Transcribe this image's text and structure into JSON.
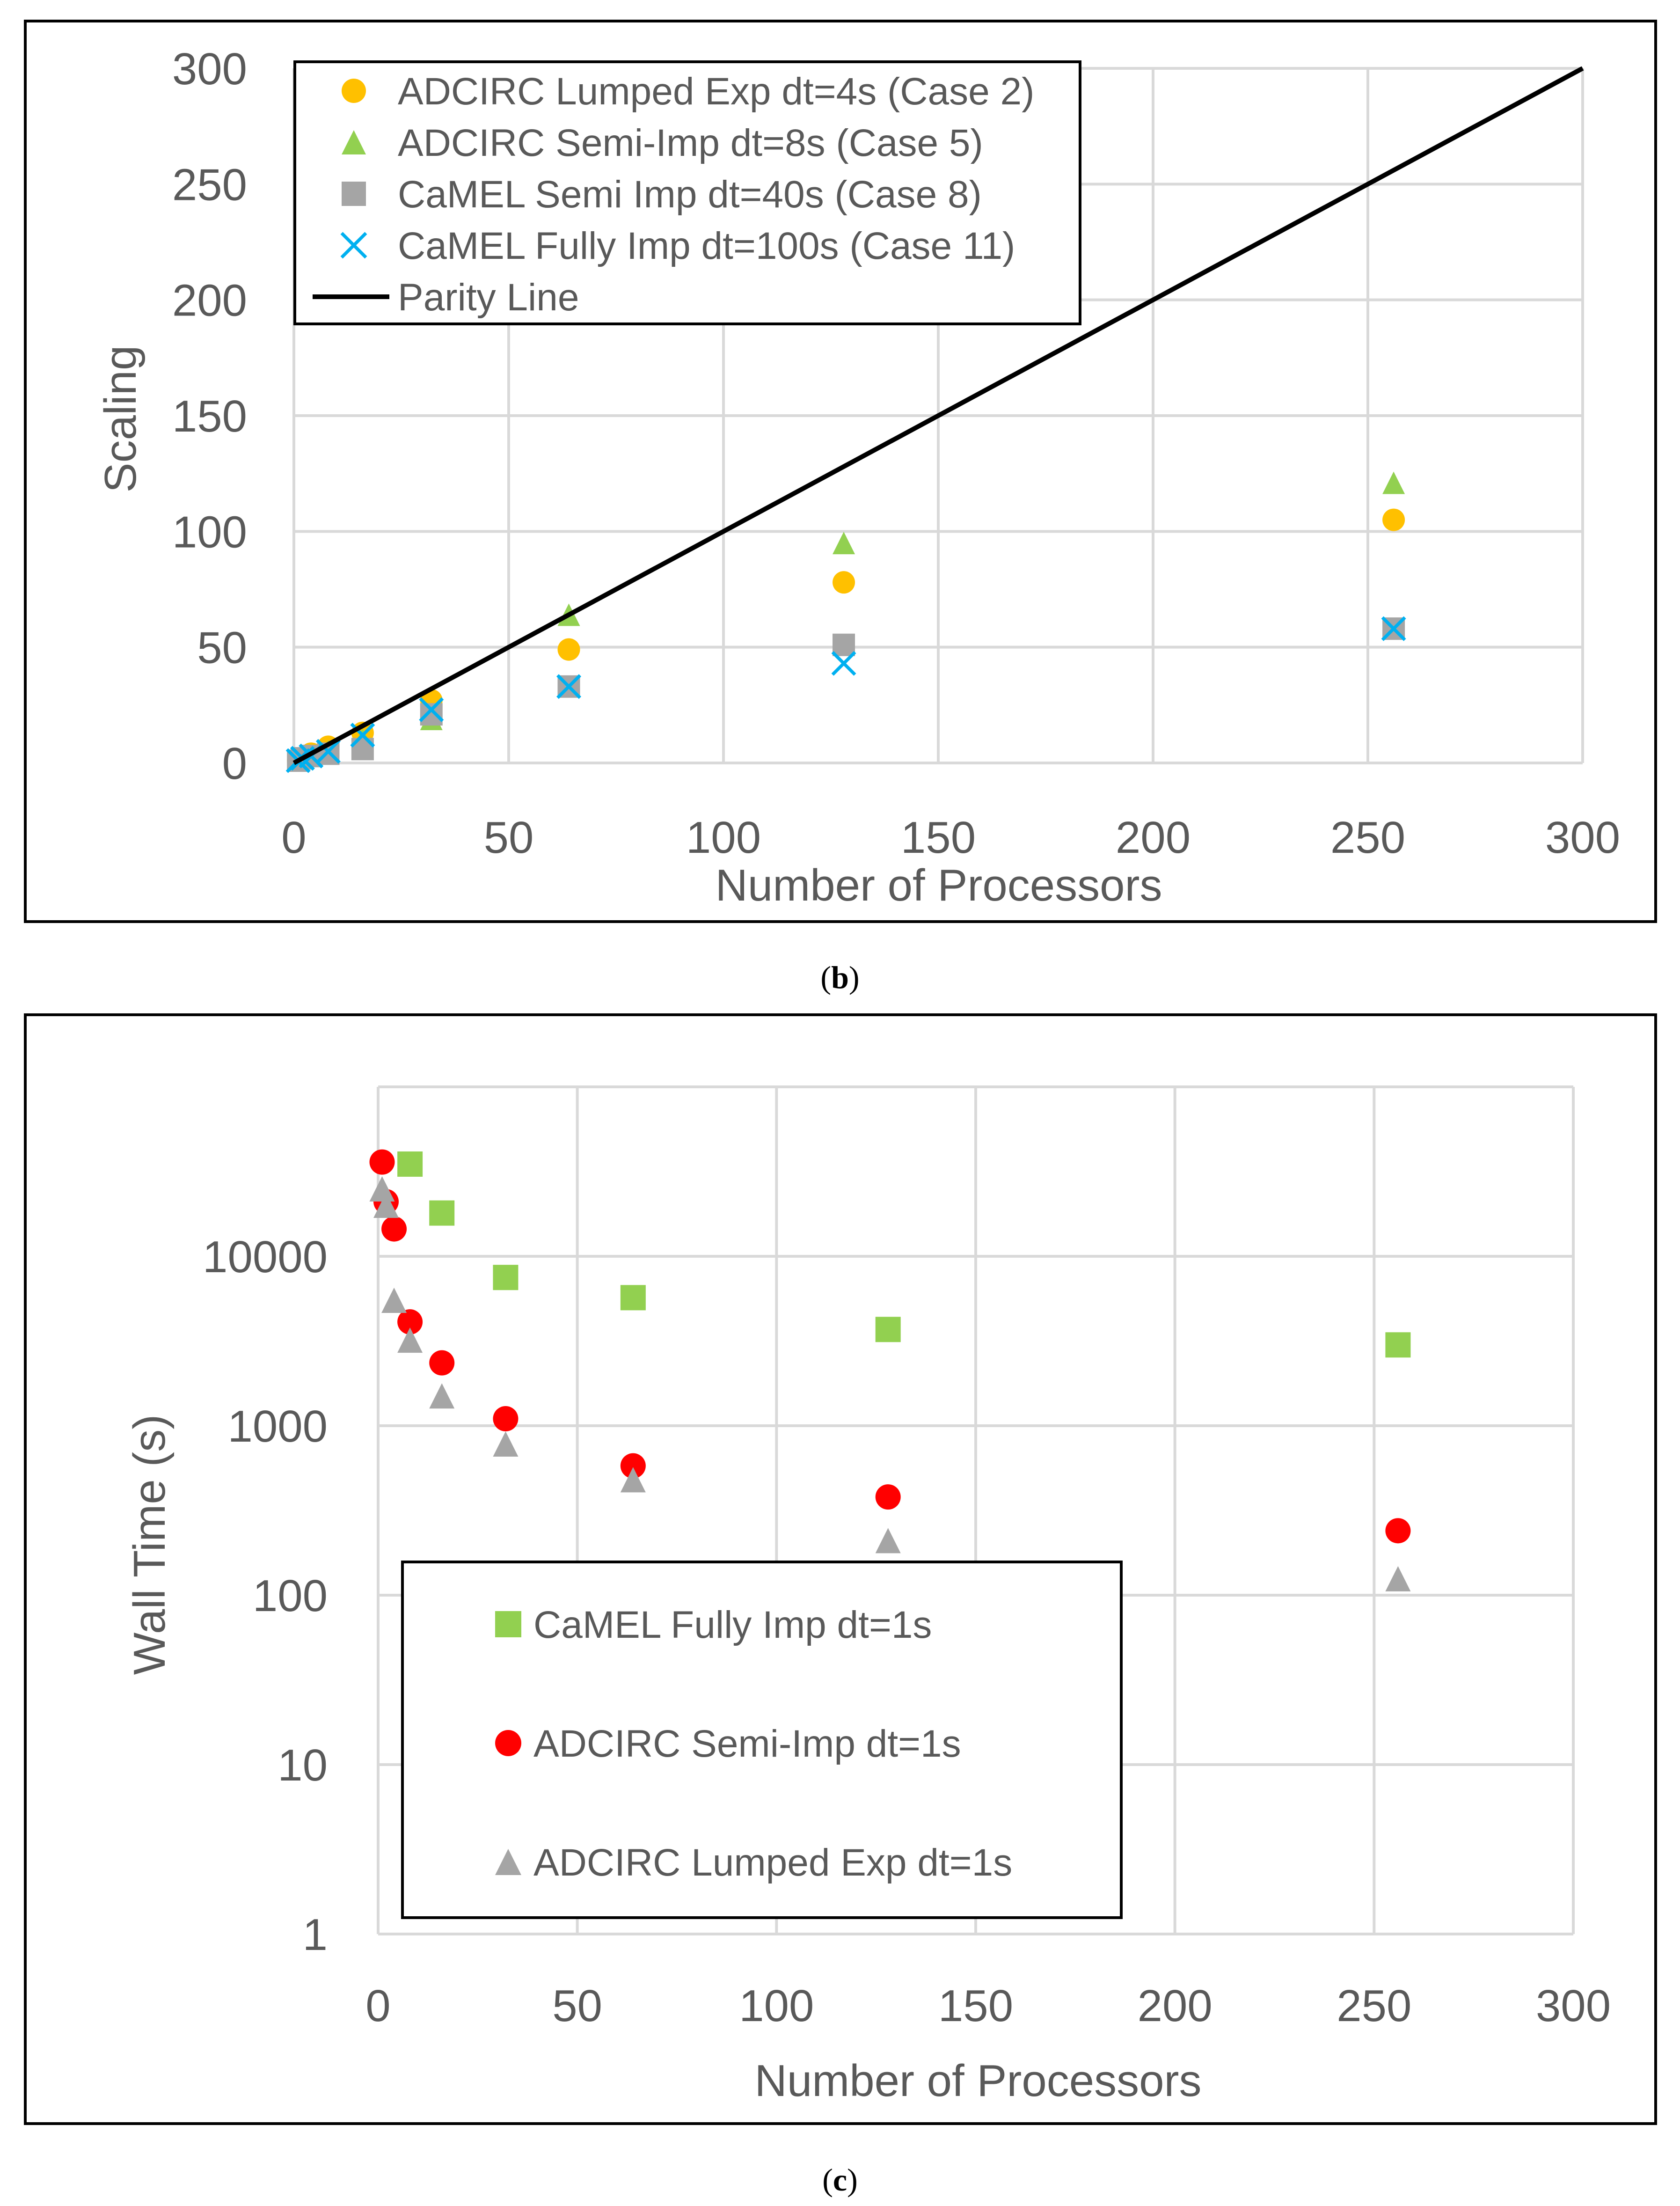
{
  "chart_data": [
    {
      "id": "b",
      "type": "scatter",
      "xlabel": "Number of Processors",
      "ylabel": "Scaling",
      "xlim": [
        0,
        300
      ],
      "ylim": [
        0,
        300
      ],
      "xticks": [
        "0",
        "50",
        "100",
        "150",
        "200",
        "250",
        "300"
      ],
      "yticks": [
        "0",
        "50",
        "100",
        "150",
        "200",
        "250",
        "300"
      ],
      "grid": true,
      "legend_position": "top-left",
      "caption_label": "b",
      "series": [
        {
          "name": "ADCIRC Lumped Exp dt=4s (Case 2)",
          "marker": "circle",
          "color": "#FFC000",
          "x": [
            1,
            2,
            4,
            8,
            16,
            32,
            64,
            128,
            256
          ],
          "y": [
            1,
            2,
            4,
            7,
            13,
            27,
            49,
            78,
            105
          ]
        },
        {
          "name": "ADCIRC Semi-Imp dt=8s (Case 5)",
          "marker": "triangle",
          "color": "#92D050",
          "x": [
            1,
            2,
            4,
            8,
            16,
            32,
            64,
            128,
            256
          ],
          "y": [
            1,
            2,
            3,
            5,
            10,
            19,
            64,
            95,
            121
          ]
        },
        {
          "name": "CaMEL Semi Imp dt=40s (Case 8)",
          "marker": "square",
          "color": "#A5A5A5",
          "x": [
            1,
            2,
            4,
            8,
            16,
            32,
            64,
            128,
            256
          ],
          "y": [
            1,
            2,
            3,
            4,
            6,
            21,
            33,
            51,
            58
          ]
        },
        {
          "name": "CaMEL Fully Imp dt=100s (Case 11)",
          "marker": "x",
          "color": "#00B0F0",
          "x": [
            1,
            2,
            4,
            8,
            16,
            32,
            64,
            128,
            256
          ],
          "y": [
            1,
            2,
            3,
            5,
            12,
            23,
            33,
            43,
            58
          ]
        },
        {
          "name": "Parity Line",
          "marker": "line",
          "color": "#000000",
          "x": [
            0,
            300
          ],
          "y": [
            0,
            300
          ]
        }
      ]
    },
    {
      "id": "c",
      "type": "scatter",
      "xlabel": "Number of Processors",
      "ylabel": "Wall Time (s)",
      "yscale": "log",
      "xlim": [
        0,
        300
      ],
      "ylim": [
        1,
        100000
      ],
      "xticks": [
        "0",
        "50",
        "100",
        "150",
        "200",
        "250",
        "300"
      ],
      "yticks": [
        "1",
        "10",
        "100",
        "1000",
        "10000"
      ],
      "grid": true,
      "legend_position": "bottom-left",
      "caption_label": "c",
      "series": [
        {
          "name": "CaMEL Fully Imp dt=1s",
          "marker": "square",
          "color": "#92D050",
          "x": [
            8,
            16,
            32,
            64,
            128,
            256
          ],
          "y": [
            35000,
            18000,
            7500,
            5700,
            3700,
            3000
          ]
        },
        {
          "name": "ADCIRC Semi-Imp dt=1s",
          "marker": "circle",
          "color": "#FF0000",
          "x": [
            1,
            2,
            4,
            8,
            16,
            32,
            64,
            128,
            256
          ],
          "y": [
            36000,
            21000,
            14500,
            4100,
            2350,
            1100,
            580,
            380,
            240
          ]
        },
        {
          "name": "ADCIRC Lumped Exp dt=1s",
          "marker": "triangle",
          "color": "#A5A5A5",
          "x": [
            1,
            2,
            4,
            8,
            16,
            32,
            64,
            128,
            256
          ],
          "y": [
            25000,
            20000,
            5500,
            3200,
            1500,
            780,
            480,
            210,
            125
          ]
        }
      ]
    }
  ]
}
